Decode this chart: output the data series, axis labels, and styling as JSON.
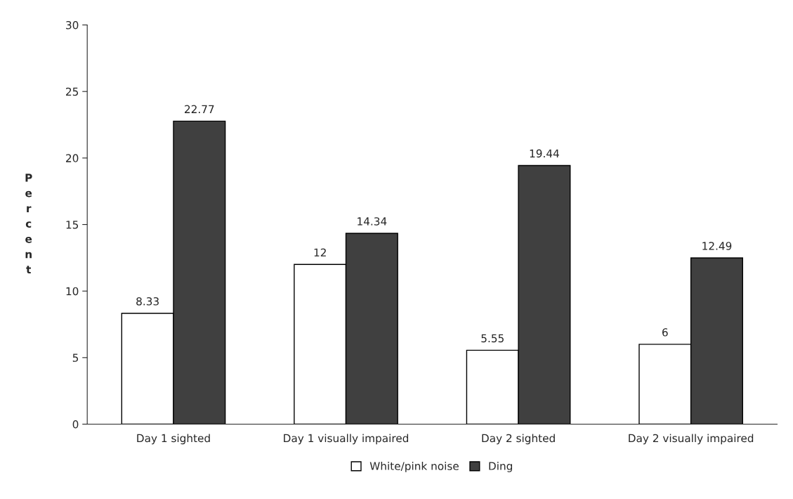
{
  "chart_data": {
    "type": "bar",
    "ylabel": "Percent",
    "categories": [
      "Day 1 sighted",
      "Day 1 visually impaired",
      "Day 2 sighted",
      "Day 2 visually impaired"
    ],
    "series": [
      {
        "name": "White/pink noise",
        "color": "#ffffff",
        "values": [
          8.33,
          12,
          5.55,
          6
        ]
      },
      {
        "name": "Ding",
        "color": "#404040",
        "values": [
          22.77,
          14.34,
          19.44,
          12.49
        ]
      }
    ],
    "ylim": [
      0,
      30
    ],
    "yticks": [
      0,
      5,
      10,
      15,
      20,
      25,
      30
    ],
    "data_labels": true,
    "grid": false,
    "legend": "bottom"
  }
}
